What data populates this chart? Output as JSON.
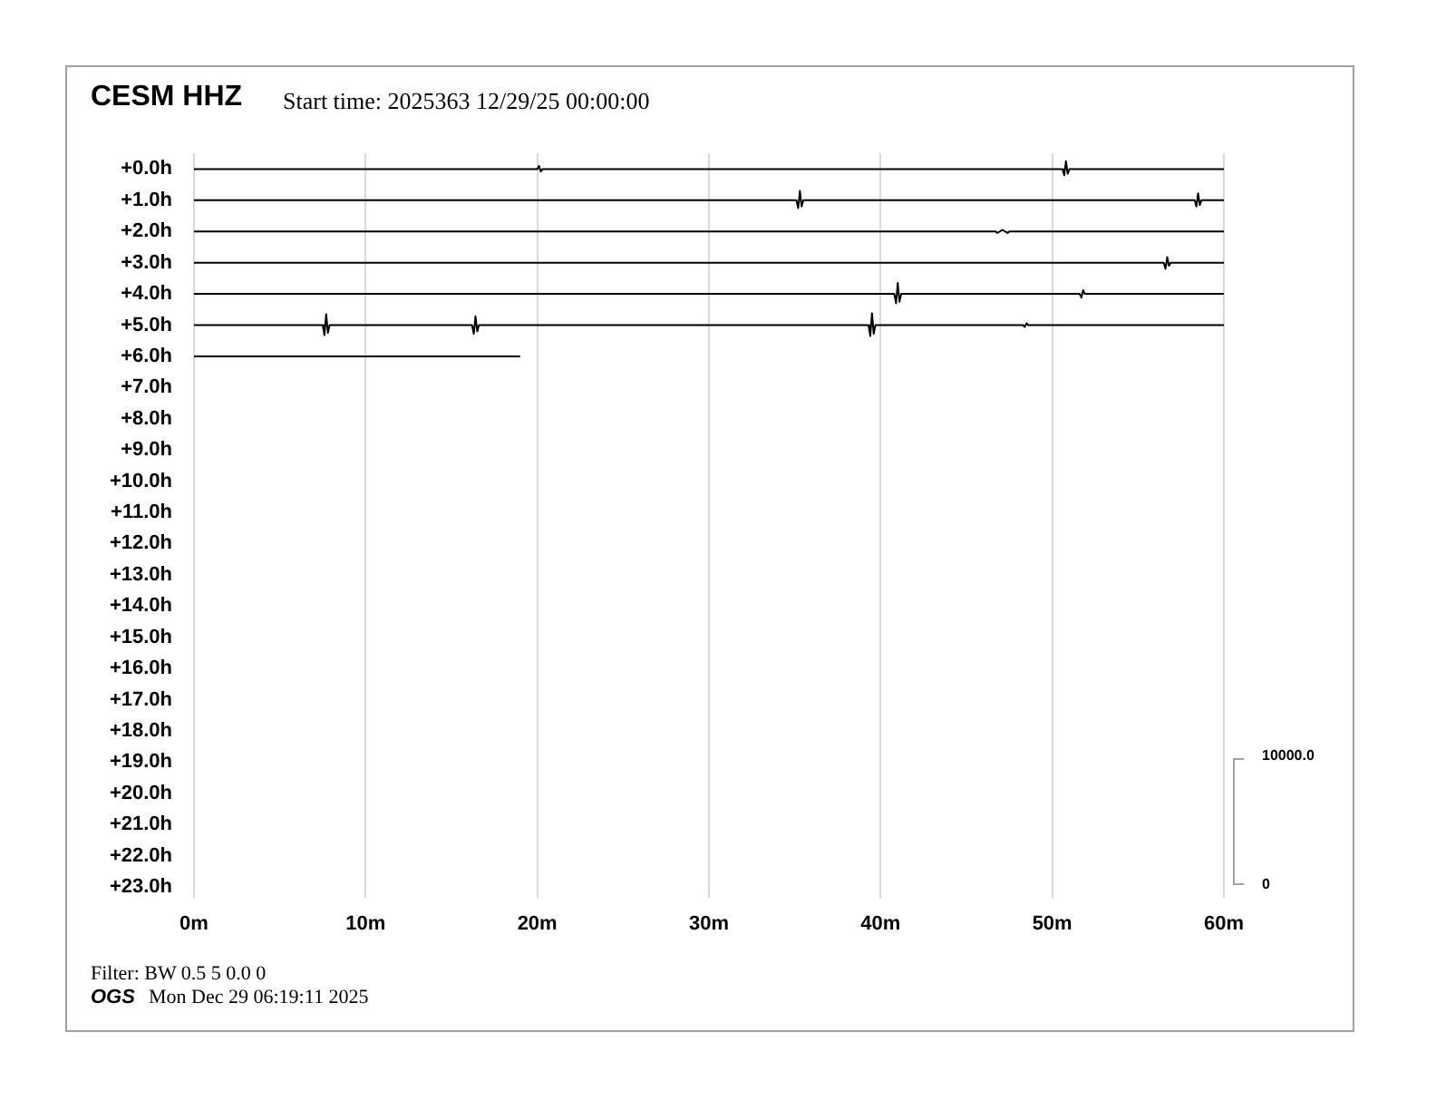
{
  "chart_data": {
    "type": "line",
    "title": "CESM HHZ",
    "subtitle": "Start time: 2025363 12/29/25 00:00:00",
    "annotations": [
      "Filter: BW 0.5 5 0.0 0",
      "OGS",
      "Mon Dec 29 06:19:11 2025",
      "10000.0",
      "0"
    ],
    "xlim": [
      0,
      60
    ],
    "xticks": [
      {
        "value": 0,
        "label": "0m"
      },
      {
        "value": 10,
        "label": "10m"
      },
      {
        "value": 20,
        "label": "20m"
      },
      {
        "value": 30,
        "label": "30m"
      },
      {
        "value": 40,
        "label": "40m"
      },
      {
        "value": 50,
        "label": "50m"
      },
      {
        "value": 60,
        "label": "60m"
      }
    ],
    "ylim": [
      23.35,
      -0.5
    ],
    "yticks": [
      {
        "value": 0,
        "label": "+0.0h"
      },
      {
        "value": 1,
        "label": "+1.0h"
      },
      {
        "value": 2,
        "label": "+2.0h"
      },
      {
        "value": 3,
        "label": "+3.0h"
      },
      {
        "value": 4,
        "label": "+4.0h"
      },
      {
        "value": 5,
        "label": "+5.0h"
      },
      {
        "value": 6,
        "label": "+6.0h"
      },
      {
        "value": 7,
        "label": "+7.0h"
      },
      {
        "value": 8,
        "label": "+8.0h"
      },
      {
        "value": 9,
        "label": "+9.0h"
      },
      {
        "value": 10,
        "label": "+10.0h"
      },
      {
        "value": 11,
        "label": "+11.0h"
      },
      {
        "value": 12,
        "label": "+12.0h"
      },
      {
        "value": 13,
        "label": "+13.0h"
      },
      {
        "value": 14,
        "label": "+14.0h"
      },
      {
        "value": 15,
        "label": "+15.0h"
      },
      {
        "value": 16,
        "label": "+16.0h"
      },
      {
        "value": 17,
        "label": "+17.0h"
      },
      {
        "value": 18,
        "label": "+18.0h"
      },
      {
        "value": 19,
        "label": "+19.0h"
      },
      {
        "value": 20,
        "label": "+20.0h"
      },
      {
        "value": 21,
        "label": "+21.0h"
      },
      {
        "value": 22,
        "label": "+22.0h"
      },
      {
        "value": 23,
        "label": "+23.0h"
      }
    ],
    "grid": "x",
    "legend": false,
    "marker": "none",
    "line_style": "solid",
    "series": [
      {
        "color": "#000000",
        "x": [
          0,
          20.0,
          20.1,
          20.2,
          20.3,
          50.6,
          50.7,
          50.8,
          50.9,
          51.0,
          60
        ],
        "values": [
          0,
          0,
          -0.1,
          0.08,
          0,
          0,
          0.2,
          -0.25,
          0.15,
          0,
          0
        ]
      },
      {
        "color": "#000000",
        "x": [
          0,
          35.1,
          35.2,
          35.3,
          35.4,
          35.5,
          58.3,
          58.4,
          58.5,
          58.6,
          58.7,
          60
        ],
        "values": [
          1,
          1,
          1.25,
          0.7,
          1.2,
          1,
          1,
          1.2,
          0.78,
          1.15,
          1,
          1
        ]
      },
      {
        "color": "#000000",
        "x": [
          0,
          46.7,
          46.8,
          47.1,
          47.4,
          47.5,
          60
        ],
        "values": [
          2,
          2,
          2.05,
          1.95,
          2.05,
          2,
          2
        ]
      },
      {
        "color": "#000000",
        "x": [
          0,
          56.5,
          56.6,
          56.7,
          56.8,
          56.9,
          60
        ],
        "values": [
          3,
          3,
          3.2,
          2.82,
          3.1,
          3,
          3
        ]
      },
      {
        "color": "#000000",
        "x": [
          0,
          40.8,
          40.9,
          41.0,
          41.1,
          41.2,
          51.6,
          51.7,
          51.8,
          51.9,
          60
        ],
        "values": [
          4,
          4,
          4.3,
          3.65,
          4.25,
          4,
          4,
          4.12,
          3.88,
          4,
          4
        ]
      },
      {
        "color": "#000000",
        "x": [
          0,
          7.5,
          7.6,
          7.7,
          7.8,
          7.9,
          16.2,
          16.3,
          16.4,
          16.5,
          16.6,
          39.3,
          39.4,
          39.5,
          39.6,
          39.7,
          48.3,
          48.4,
          48.5,
          48.6,
          60
        ],
        "values": [
          5,
          5,
          5.32,
          4.65,
          5.25,
          5,
          5,
          5.28,
          4.72,
          5.2,
          5,
          5,
          5.35,
          4.62,
          5.28,
          5,
          5,
          5.06,
          4.94,
          5,
          5
        ]
      },
      {
        "color": "#000000",
        "x": [
          0,
          19.0
        ],
        "values": [
          6,
          6
        ]
      }
    ]
  }
}
